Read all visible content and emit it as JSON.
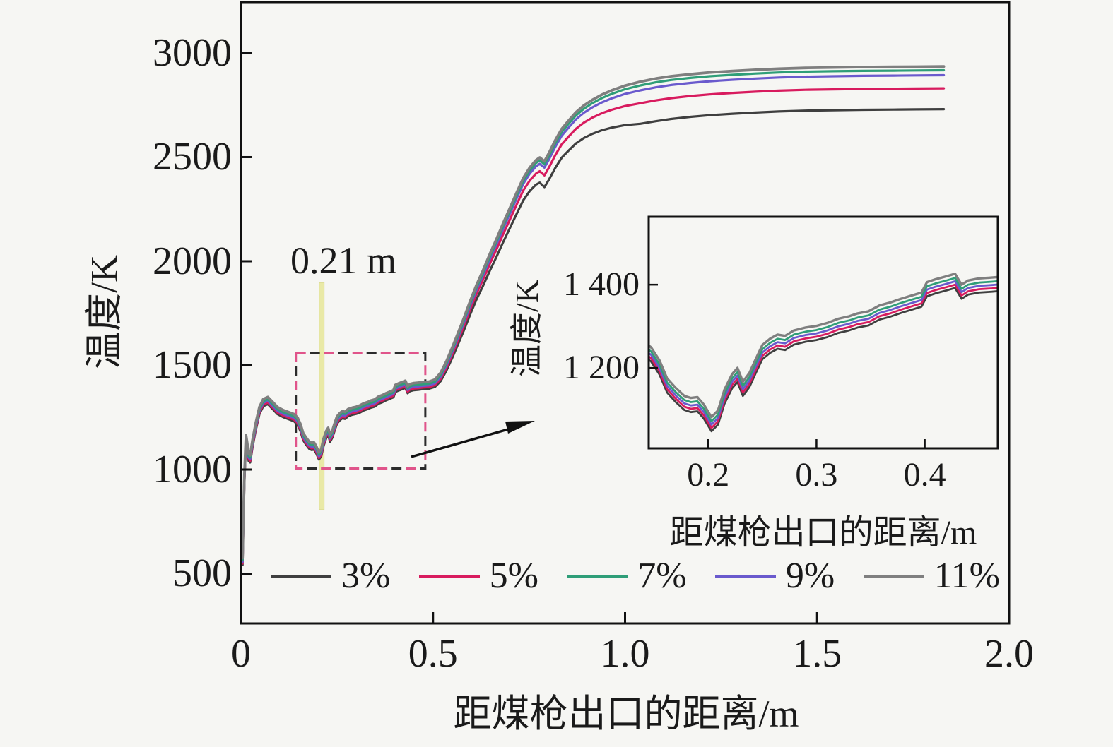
{
  "figure": {
    "background": "#f6f6f3",
    "annotation": {
      "text": "0.21 m",
      "x": 0.21,
      "line_color": "#e9e9a6",
      "line_edge": "#d2d28a"
    },
    "zoom_box_colors": {
      "dash_dark": "#2b2b2b",
      "dash_pink": "#e0548a"
    }
  },
  "chart_data": {
    "type": "line",
    "title": "",
    "xlabel": "距煤枪出口的距离/m",
    "ylabel": "温度/K",
    "xlim": [
      0,
      2.0
    ],
    "ylim": [
      261,
      3244
    ],
    "grid": false,
    "legend_position": "lower center inside",
    "xticks": [
      {
        "v": 0.0,
        "label": "0"
      },
      {
        "v": 0.5,
        "label": "0.5"
      },
      {
        "v": 1.0,
        "label": "1.0"
      },
      {
        "v": 1.5,
        "label": "1.5"
      },
      {
        "v": 2.0,
        "label": "2.0"
      }
    ],
    "yticks": [
      {
        "v": 500,
        "label": "500"
      },
      {
        "v": 1000,
        "label": "1000"
      },
      {
        "v": 1500,
        "label": "1500"
      },
      {
        "v": 2000,
        "label": "2000"
      },
      {
        "v": 2500,
        "label": "2500"
      },
      {
        "v": 3000,
        "label": "3000"
      }
    ],
    "series": [
      {
        "name": "3%",
        "color": "#3f3f3f",
        "width": 3.2,
        "offset_near": -34,
        "offset_far": -205
      },
      {
        "name": "5%",
        "color": "#d81b5e",
        "width": 3.2,
        "offset_near": -26,
        "offset_far": -105
      },
      {
        "name": "9%",
        "color": "#6a5acd",
        "width": 3.2,
        "offset_near": -18,
        "offset_far": -42
      },
      {
        "name": "7%",
        "color": "#2f9e78",
        "width": 3.2,
        "offset_near": -10,
        "offset_far": -18
      },
      {
        "name": "11%",
        "color": "#7f7f7f",
        "width": 3.8,
        "offset_near": 0,
        "offset_far": 0
      }
    ],
    "legend_order": [
      "3%",
      "5%",
      "7%",
      "9%",
      "11%"
    ],
    "offset_ramp_x": [
      0.5,
      1.05
    ],
    "base_points": [
      [
        0.004,
        575
      ],
      [
        0.006,
        760
      ],
      [
        0.009,
        980
      ],
      [
        0.013,
        1165
      ],
      [
        0.016,
        1130
      ],
      [
        0.02,
        1075
      ],
      [
        0.024,
        1068
      ],
      [
        0.03,
        1140
      ],
      [
        0.038,
        1220
      ],
      [
        0.048,
        1300
      ],
      [
        0.058,
        1338
      ],
      [
        0.07,
        1348
      ],
      [
        0.082,
        1325
      ],
      [
        0.095,
        1300
      ],
      [
        0.11,
        1285
      ],
      [
        0.125,
        1275
      ],
      [
        0.138,
        1266
      ],
      [
        0.147,
        1250
      ],
      [
        0.155,
        1218
      ],
      [
        0.162,
        1175
      ],
      [
        0.17,
        1152
      ],
      [
        0.178,
        1133
      ],
      [
        0.184,
        1128
      ],
      [
        0.19,
        1130
      ],
      [
        0.196,
        1112
      ],
      [
        0.203,
        1082
      ],
      [
        0.209,
        1098
      ],
      [
        0.215,
        1148
      ],
      [
        0.222,
        1185
      ],
      [
        0.227,
        1200
      ],
      [
        0.232,
        1167
      ],
      [
        0.238,
        1188
      ],
      [
        0.244,
        1222
      ],
      [
        0.25,
        1255
      ],
      [
        0.257,
        1270
      ],
      [
        0.264,
        1280
      ],
      [
        0.271,
        1277
      ],
      [
        0.279,
        1290
      ],
      [
        0.29,
        1297
      ],
      [
        0.3,
        1301
      ],
      [
        0.31,
        1308
      ],
      [
        0.32,
        1318
      ],
      [
        0.33,
        1324
      ],
      [
        0.338,
        1331
      ],
      [
        0.348,
        1336
      ],
      [
        0.358,
        1350
      ],
      [
        0.368,
        1357
      ],
      [
        0.378,
        1366
      ],
      [
        0.388,
        1374
      ],
      [
        0.397,
        1381
      ],
      [
        0.402,
        1406
      ],
      [
        0.41,
        1413
      ],
      [
        0.42,
        1420
      ],
      [
        0.428,
        1426
      ],
      [
        0.434,
        1400
      ],
      [
        0.44,
        1410
      ],
      [
        0.45,
        1415
      ],
      [
        0.462,
        1417
      ],
      [
        0.475,
        1420
      ],
      [
        0.49,
        1422
      ],
      [
        0.505,
        1432
      ],
      [
        0.52,
        1465
      ],
      [
        0.535,
        1520
      ],
      [
        0.55,
        1585
      ],
      [
        0.565,
        1655
      ],
      [
        0.58,
        1725
      ],
      [
        0.597,
        1810
      ],
      [
        0.613,
        1885
      ],
      [
        0.63,
        1955
      ],
      [
        0.648,
        2035
      ],
      [
        0.665,
        2105
      ],
      [
        0.682,
        2180
      ],
      [
        0.7,
        2255
      ],
      [
        0.718,
        2330
      ],
      [
        0.735,
        2400
      ],
      [
        0.752,
        2450
      ],
      [
        0.768,
        2485
      ],
      [
        0.778,
        2498
      ],
      [
        0.79,
        2480
      ],
      [
        0.802,
        2520
      ],
      [
        0.818,
        2580
      ],
      [
        0.835,
        2635
      ],
      [
        0.853,
        2675
      ],
      [
        0.872,
        2715
      ],
      [
        0.893,
        2748
      ],
      [
        0.915,
        2775
      ],
      [
        0.94,
        2800
      ],
      [
        0.965,
        2820
      ],
      [
        1.0,
        2843
      ],
      [
        1.04,
        2862
      ],
      [
        1.08,
        2877
      ],
      [
        1.12,
        2888
      ],
      [
        1.17,
        2898
      ],
      [
        1.22,
        2906
      ],
      [
        1.28,
        2913
      ],
      [
        1.34,
        2919
      ],
      [
        1.4,
        2924
      ],
      [
        1.47,
        2928
      ],
      [
        1.54,
        2930
      ],
      [
        1.62,
        2932
      ],
      [
        1.7,
        2933
      ],
      [
        1.76,
        2934
      ],
      [
        1.83,
        2935
      ]
    ],
    "zoom_region": {
      "x0": 0.143,
      "x1": 0.48,
      "y0": 1005,
      "y1": 1558
    },
    "inset": {
      "xlabel": "距煤枪出口的距离/m",
      "ylabel": "温度/K",
      "xlim": [
        0.145,
        0.4675
      ],
      "ylim": [
        1007,
        1563
      ],
      "xticks": [
        {
          "v": 0.2,
          "label": "0.2"
        },
        {
          "v": 0.3,
          "label": "0.3"
        },
        {
          "v": 0.4,
          "label": "0.4"
        }
      ],
      "yticks": [
        {
          "v": 1200,
          "label": "1 200"
        },
        {
          "v": 1400,
          "label": "1 400"
        }
      ]
    }
  }
}
